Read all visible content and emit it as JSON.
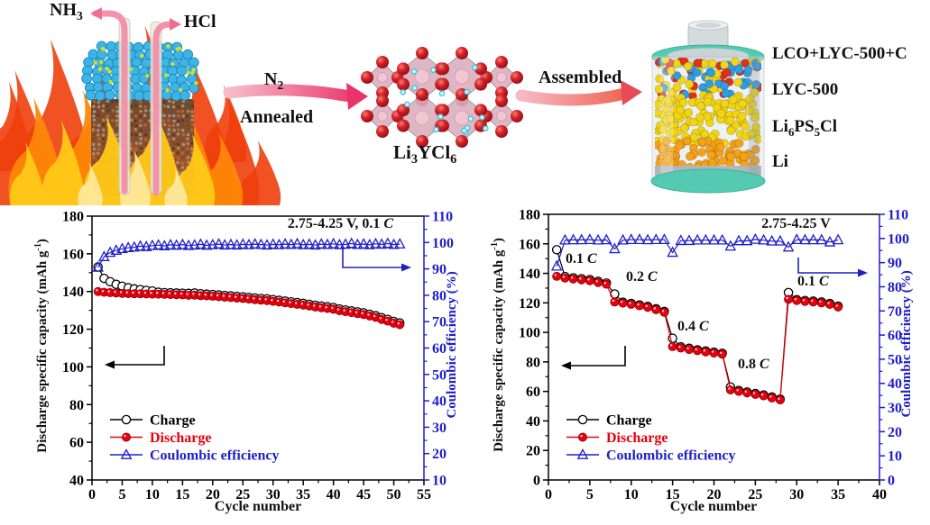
{
  "colors": {
    "charge": "#000000",
    "discharge": "#e8000e",
    "efficiency": "#1f1fc8",
    "arrow_pink": "#ee4d80",
    "flame_orange": "#f4610e",
    "flame_yellow": "#ffc818",
    "battery_ring_teal": "#55cab2",
    "crystal_red": "#c51a22"
  },
  "schematic": {
    "gas1": [
      {
        "t": "NH"
      },
      {
        "s": "3"
      }
    ],
    "gas2": [
      {
        "t": "HCl"
      }
    ],
    "step1_top": [
      {
        "t": "N"
      },
      {
        "s": "2"
      }
    ],
    "step1_bottom": [
      {
        "t": "Annealed"
      }
    ],
    "material": [
      {
        "t": "Li"
      },
      {
        "s": "3"
      },
      {
        "t": "YCl"
      },
      {
        "s": "6"
      }
    ],
    "step2": [
      {
        "t": "Assembled"
      }
    ],
    "battery_layers": [
      [
        {
          "t": "LCO+LYC-500+C"
        }
      ],
      [
        {
          "t": "LYC-500"
        }
      ],
      [
        {
          "t": "Li"
        },
        {
          "s": "6"
        },
        {
          "t": "PS"
        },
        {
          "s": "5"
        },
        {
          "t": "Cl"
        }
      ],
      [
        {
          "t": "Li"
        }
      ]
    ]
  },
  "chart_data": [
    {
      "type": "line",
      "annotation": [
        {
          "t": "2.75-4.25 V, 0.1 "
        },
        {
          "i": "C"
        }
      ],
      "xlabel": "Cycle number",
      "ylabel_left": [
        {
          "t": "Discharge specific capacity (mAh g"
        },
        {
          "u": "-1"
        },
        {
          "t": ")"
        }
      ],
      "ylabel_right": [
        {
          "t": "Coulombic efficiency (%)"
        }
      ],
      "xlim": [
        0,
        55
      ],
      "ylim_left": [
        40,
        180
      ],
      "ylim_right": [
        10,
        110
      ],
      "xticks": [
        0,
        5,
        10,
        15,
        20,
        25,
        30,
        35,
        40,
        45,
        50,
        55
      ],
      "yticks_left": [
        40,
        60,
        80,
        100,
        120,
        140,
        160,
        180
      ],
      "yticks_right": [
        10,
        20,
        30,
        40,
        50,
        60,
        70,
        80,
        90,
        100,
        110
      ],
      "legend_position": "lower-left",
      "grid": false,
      "series": [
        {
          "name": "Charge",
          "color": "#000000",
          "marker": "circle-open",
          "axis": "left",
          "values": [
            153.0,
            147.0,
            145.2,
            143.8,
            142.8,
            142.0,
            141.4,
            141.0,
            140.6,
            140.3,
            139.6,
            139.4,
            139.3,
            139.2,
            139.1,
            139.0,
            139.2,
            138.8,
            138.6,
            138.4,
            138.2,
            137.9,
            137.7,
            137.4,
            137.2,
            136.9,
            136.6,
            136.3,
            136.1,
            135.7,
            135.3,
            134.9,
            134.5,
            134.1,
            133.7,
            133.2,
            132.7,
            132.3,
            131.9,
            131.5,
            130.7,
            130.2,
            129.7,
            129.2,
            128.7,
            127.9,
            127.2,
            126.1,
            125.2,
            124.1,
            123.3
          ]
        },
        {
          "name": "Discharge",
          "color": "#e8000e",
          "marker": "circle-filled",
          "axis": "left",
          "values": [
            140.0,
            139.6,
            139.4,
            139.2,
            139.0,
            138.9,
            138.8,
            138.8,
            138.7,
            138.6,
            138.6,
            138.5,
            138.4,
            138.3,
            138.2,
            138.0,
            138.1,
            137.8,
            137.7,
            137.5,
            137.3,
            137.0,
            136.8,
            136.5,
            136.3,
            136.0,
            135.7,
            135.4,
            135.2,
            134.8,
            134.4,
            134.0,
            133.6,
            133.2,
            132.8,
            132.3,
            131.8,
            131.4,
            131.0,
            130.6,
            129.8,
            129.3,
            128.8,
            128.3,
            127.8,
            127.0,
            126.3,
            125.2,
            124.3,
            123.2,
            122.4
          ]
        },
        {
          "name": "Coulombic efficiency",
          "color": "#1f1fc8",
          "marker": "triangle-open",
          "axis": "right",
          "values": [
            90.6,
            94.6,
            96.2,
            97.0,
            97.6,
            98.0,
            98.2,
            98.6,
            98.4,
            98.8,
            99.0,
            98.7,
            99.1,
            98.9,
            99.2,
            98.8,
            99.0,
            99.3,
            98.9,
            99.1,
            99.4,
            99.0,
            99.2,
            99.0,
            99.3,
            99.1,
            99.4,
            99.2,
            99.0,
            99.3,
            99.1,
            99.4,
            99.2,
            99.5,
            99.1,
            99.3,
            99.0,
            99.4,
            99.2,
            99.5,
            99.1,
            99.3,
            99.6,
            99.2,
            99.4,
            99.1,
            99.5,
            99.3,
            99.6,
            99.2,
            99.4
          ]
        }
      ]
    },
    {
      "type": "line",
      "annotation": [
        {
          "t": "2.75-4.25 V"
        }
      ],
      "xlabel": "Cycle number",
      "ylabel_left": [
        {
          "t": "Discharge specific capacity (mAh g"
        },
        {
          "u": "-1"
        },
        {
          "t": ")"
        }
      ],
      "ylabel_right": [
        {
          "t": "Coulombic efficiency (%)"
        }
      ],
      "xlim": [
        0,
        40
      ],
      "ylim_left": [
        0,
        180
      ],
      "ylim_right": [
        0,
        110
      ],
      "xticks": [
        0,
        5,
        10,
        15,
        20,
        25,
        30,
        35,
        40
      ],
      "yticks_left": [
        0,
        20,
        40,
        60,
        80,
        100,
        120,
        140,
        160,
        180
      ],
      "yticks_right": [
        0,
        10,
        20,
        30,
        40,
        50,
        60,
        70,
        80,
        90,
        100,
        110
      ],
      "legend_position": "lower-left",
      "grid": false,
      "rate_labels": [
        [
          {
            "t": "0.1 "
          },
          {
            "i": "C"
          }
        ],
        [
          {
            "t": "0.2 "
          },
          {
            "i": "C"
          }
        ],
        [
          {
            "t": "0.4 "
          },
          {
            "i": "C"
          }
        ],
        [
          {
            "t": "0.8 "
          },
          {
            "i": "C"
          }
        ],
        [
          {
            "t": "0.1 "
          },
          {
            "i": "C"
          }
        ]
      ],
      "series": [
        {
          "name": "Charge",
          "color": "#000000",
          "marker": "circle-open",
          "axis": "left",
          "values": [
            156.0,
            137.8,
            137.0,
            136.4,
            135.8,
            134.6,
            133.4,
            126.0,
            120.4,
            119.6,
            118.6,
            117.6,
            116.0,
            114.2,
            96.0,
            90.2,
            89.2,
            88.2,
            87.4,
            86.6,
            85.8,
            63.0,
            60.6,
            59.6,
            58.6,
            57.6,
            56.2,
            54.8,
            127.0,
            122.2,
            121.6,
            121.2,
            120.6,
            119.6,
            117.8
          ]
        },
        {
          "name": "Discharge",
          "color": "#e8000e",
          "marker": "circle-filled",
          "axis": "left",
          "values": [
            138.0,
            136.8,
            136.2,
            135.6,
            135.0,
            133.8,
            132.6,
            120.6,
            119.8,
            119.0,
            118.0,
            117.0,
            115.4,
            113.6,
            90.4,
            89.4,
            88.4,
            87.6,
            86.8,
            86.0,
            85.2,
            61.0,
            60.0,
            59.0,
            58.0,
            57.0,
            55.6,
            54.2,
            122.4,
            121.6,
            121.0,
            120.6,
            120.0,
            119.0,
            117.2
          ]
        },
        {
          "name": "Coulombic efficiency",
          "color": "#1f1fc8",
          "marker": "triangle-open",
          "axis": "right",
          "values": [
            88.5,
            99.3,
            99.4,
            99.4,
            99.5,
            99.3,
            99.4,
            95.7,
            99.3,
            99.5,
            99.5,
            99.4,
            99.5,
            99.5,
            94.2,
            99.1,
            99.1,
            99.3,
            99.3,
            99.3,
            99.3,
            96.8,
            99.0,
            99.0,
            99.6,
            99.3,
            98.9,
            98.9,
            96.4,
            99.5,
            99.4,
            99.4,
            99.4,
            98.5,
            99.4
          ]
        }
      ]
    }
  ]
}
